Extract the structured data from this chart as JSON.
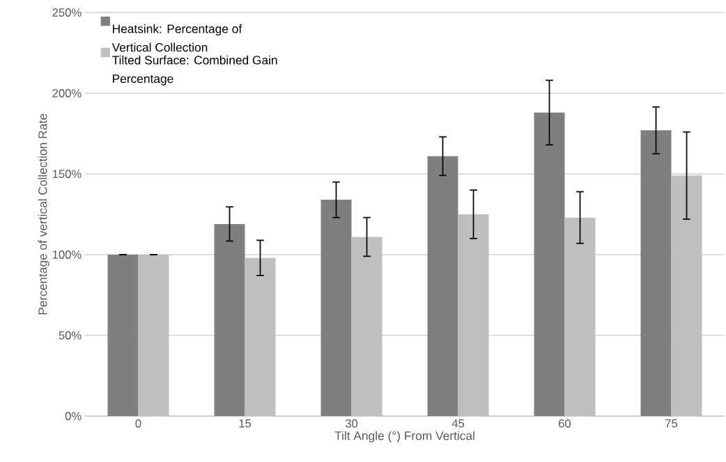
{
  "chart_data": {
    "type": "bar",
    "xlabel": "Tilt Angle (°) From Vertical",
    "ylabel": "Percentage of vertical Collection Rate",
    "categories": [
      "0",
      "15",
      "30",
      "45",
      "60",
      "75"
    ],
    "series": [
      {
        "name": "Heatsink: Percentage of Vertical Collection",
        "color": "#7f7f7f",
        "values": [
          100,
          119,
          134,
          161,
          188,
          177
        ],
        "errors": [
          0,
          10.6,
          11,
          12,
          20,
          14.5
        ]
      },
      {
        "name": "Tilted Surface: Combined Gain Percentage",
        "color": "#bfbfbf",
        "values": [
          100,
          98,
          111,
          125,
          123,
          149
        ],
        "errors": [
          0,
          10.9,
          12,
          15,
          16,
          27
        ]
      }
    ],
    "ylim": [
      0,
      250
    ],
    "yticks": [
      {
        "value": 0,
        "label": "0%"
      },
      {
        "value": 50,
        "label": "50%"
      },
      {
        "value": 100,
        "label": "100%"
      },
      {
        "value": 150,
        "label": "150%"
      },
      {
        "value": 200,
        "label": "200%"
      },
      {
        "value": 250,
        "label": "250%"
      }
    ],
    "grid": "y",
    "legend": "top left"
  }
}
